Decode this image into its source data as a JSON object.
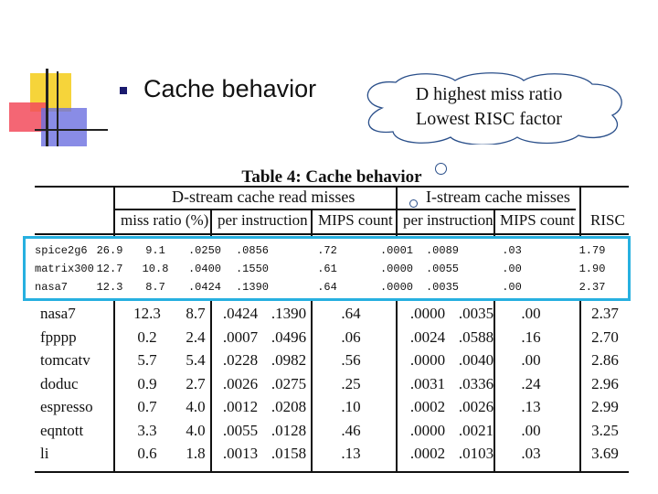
{
  "slide": {
    "heading": "Cache behavior",
    "bubble_line1": "D highest miss ratio",
    "bubble_line2": "Lowest RISC factor"
  },
  "table": {
    "title": "Table 4: Cache behavior",
    "group_d": "D-stream cache read misses",
    "group_i": "I-stream cache misses",
    "col_miss_ratio": "miss ratio (%)",
    "col_per_instr_d": "per instruction",
    "col_mips_d": "MIPS count",
    "col_per_instr_i": "per instruction",
    "col_mips_i": "MIPS count",
    "col_risc": "RISC",
    "rows": [
      {
        "name": "nasa7",
        "v": [
          "12.3",
          "8.7",
          ".0424",
          ".1390",
          ".64",
          ".0000",
          ".0035",
          ".00",
          "2.37"
        ]
      },
      {
        "name": "fpppp",
        "v": [
          "0.2",
          "2.4",
          ".0007",
          ".0496",
          ".06",
          ".0024",
          ".0588",
          ".16",
          "2.70"
        ]
      },
      {
        "name": "tomcatv",
        "v": [
          "5.7",
          "5.4",
          ".0228",
          ".0982",
          ".56",
          ".0000",
          ".0040",
          ".00",
          "2.86"
        ]
      },
      {
        "name": "doduc",
        "v": [
          "0.9",
          "2.7",
          ".0026",
          ".0275",
          ".25",
          ".0031",
          ".0336",
          ".24",
          "2.96"
        ]
      },
      {
        "name": "espresso",
        "v": [
          "0.7",
          "4.0",
          ".0012",
          ".0208",
          ".10",
          ".0002",
          ".0026",
          ".13",
          "2.99"
        ]
      },
      {
        "name": "eqntott",
        "v": [
          "3.3",
          "4.0",
          ".0055",
          ".0128",
          ".46",
          ".0000",
          ".0021",
          ".00",
          "3.25"
        ]
      },
      {
        "name": "li",
        "v": [
          "0.6",
          "1.8",
          ".0013",
          ".0158",
          ".13",
          ".0002",
          ".0103",
          ".03",
          "3.69"
        ]
      }
    ],
    "highlight_rows": [
      {
        "name": "spice2g6",
        "v": [
          "26.9",
          "9.1",
          ".0250",
          ".0856",
          ".72",
          ".0001",
          ".0089",
          ".03",
          "1.79"
        ]
      },
      {
        "name": "matrix300",
        "v": [
          "12.7",
          "10.8",
          ".0400",
          ".1550",
          ".61",
          ".0000",
          ".0055",
          ".00",
          "1.90"
        ]
      },
      {
        "name": "nasa7",
        "v": [
          "12.3",
          "8.7",
          ".0424",
          ".1390",
          ".64",
          ".0000",
          ".0035",
          ".00",
          "2.37"
        ]
      }
    ]
  },
  "colors": {
    "highlight_border": "#27b0e0",
    "bullet": "#1a1a6e",
    "bubble_outline": "#2a4f8a"
  }
}
